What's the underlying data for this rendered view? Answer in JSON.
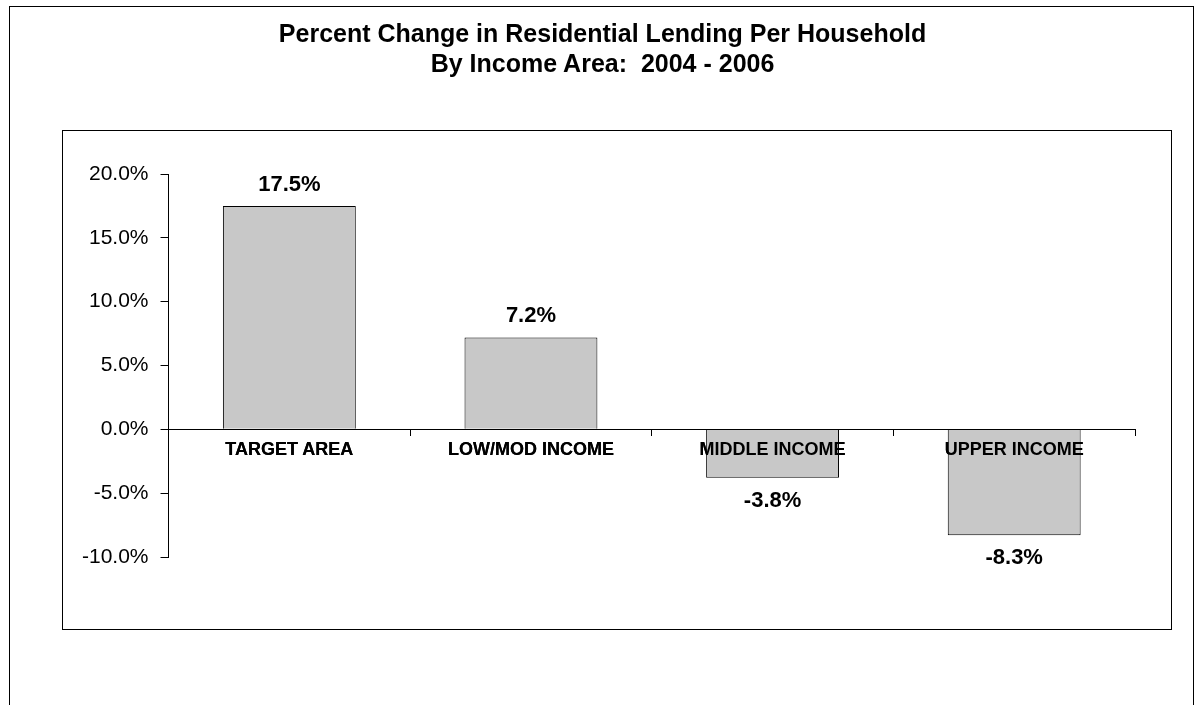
{
  "chart_data": {
    "type": "bar",
    "title": "Percent Change in Residential Lending Per Household\nBy Income Area:  2004 - 2006",
    "categories": [
      "TARGET AREA",
      "LOW/MOD INCOME",
      "MIDDLE INCOME",
      "UPPER INCOME"
    ],
    "values": [
      17.5,
      7.2,
      -3.8,
      -8.3
    ],
    "color": "#c8c8c8",
    "value_labels": [
      "17.5%",
      "7.2%",
      "-3.8%",
      "-8.3%"
    ],
    "ylim": [
      -10,
      20
    ],
    "yticks": [
      {
        "value": -10,
        "label": "-10.0%"
      },
      {
        "value": -5,
        "label": "-5.0%"
      },
      {
        "value": 0,
        "label": "0.0%"
      },
      {
        "value": 5,
        "label": "5.0%"
      },
      {
        "value": 10,
        "label": "10.0%"
      },
      {
        "value": 15,
        "label": "15.0%"
      },
      {
        "value": 20,
        "label": "20.0%"
      }
    ],
    "grid": false,
    "legend": false
  }
}
